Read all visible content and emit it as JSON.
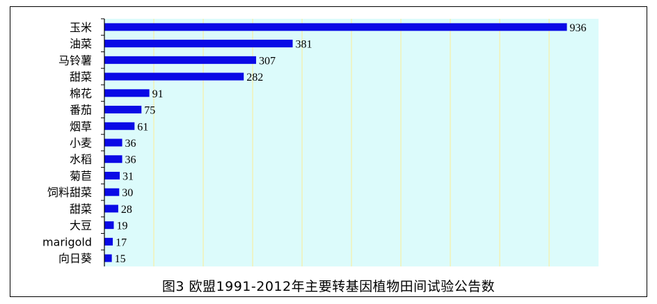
{
  "chart_data": {
    "type": "bar",
    "orientation": "horizontal",
    "categories": [
      "玉米",
      "油菜",
      "马铃薯",
      "甜菜",
      "棉花",
      "番茄",
      "烟草",
      "小麦",
      "水稻",
      "菊苣",
      "饲料甜菜",
      "甜菜",
      "大豆",
      "marigold",
      "向日葵"
    ],
    "values": [
      936,
      381,
      307,
      282,
      91,
      75,
      61,
      36,
      36,
      31,
      30,
      28,
      19,
      17,
      15
    ],
    "xlim": [
      0,
      1000
    ],
    "grid": true,
    "legend": "none",
    "colors": {
      "bar": "#0a0ae6",
      "plot_bg": "#dcfbfb",
      "gridline": "#f2f2b8"
    }
  },
  "caption": "图3 欧盟1991-2012年主要转基因植物田间试验公告数"
}
